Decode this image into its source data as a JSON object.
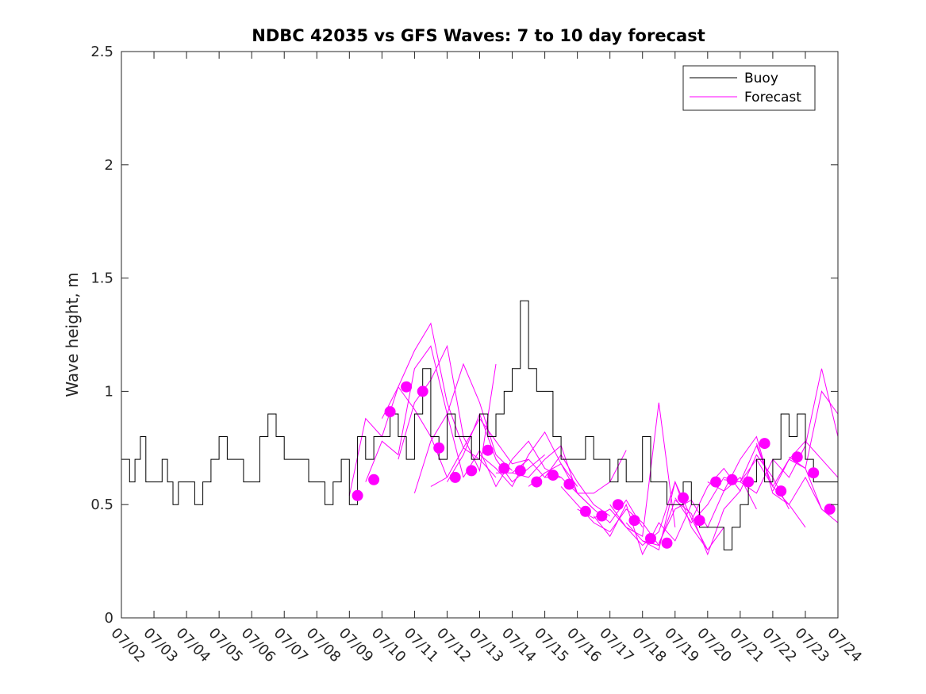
{
  "colors": {
    "buoy": "#000000",
    "forecast": "#ff00ff",
    "axis": "#262626",
    "background": "#ffffff"
  },
  "chart_data": {
    "type": "line",
    "title": "NDBC 42035 vs GFS Waves: 7 to 10 day forecast",
    "ylabel": "Wave height, m",
    "xlabel": "",
    "x_axis_kind": "date",
    "xlim": [
      "07/02",
      "07/24"
    ],
    "ylim": [
      0,
      2.5
    ],
    "x_ticks": [
      "07/02",
      "07/03",
      "07/04",
      "07/05",
      "07/06",
      "07/07",
      "07/08",
      "07/09",
      "07/10",
      "07/11",
      "07/12",
      "07/13",
      "07/14",
      "07/15",
      "07/16",
      "07/17",
      "07/18",
      "07/19",
      "07/20",
      "07/21",
      "07/22",
      "07/23",
      "07/24"
    ],
    "y_ticks": [
      0,
      0.5,
      1,
      1.5,
      2,
      2.5
    ],
    "y_tick_labels": [
      "0",
      "0.5",
      "1",
      "1.5",
      "2",
      "2.5"
    ],
    "grid": false,
    "legend": {
      "placement": "top-right",
      "entries": [
        "Buoy",
        "Forecast"
      ]
    },
    "buoy": {
      "x": [
        "07/02 00:00",
        "07/02 06:00",
        "07/02 10:00",
        "07/02 14:00",
        "07/02 18:00",
        "07/03 00:00",
        "07/03 06:00",
        "07/03 10:00",
        "07/03 14:00",
        "07/03 18:00",
        "07/04 00:00",
        "07/04 06:00",
        "07/04 12:00",
        "07/04 18:00",
        "07/05 00:00",
        "07/05 06:00",
        "07/05 12:00",
        "07/05 18:00",
        "07/06 00:00",
        "07/06 06:00",
        "07/06 12:00",
        "07/06 18:00",
        "07/07 00:00",
        "07/07 06:00",
        "07/07 12:00",
        "07/07 18:00",
        "07/08 00:00",
        "07/08 06:00",
        "07/08 12:00",
        "07/08 18:00",
        "07/09 00:00",
        "07/09 06:00",
        "07/09 12:00",
        "07/09 18:00",
        "07/10 00:00",
        "07/10 06:00",
        "07/10 12:00",
        "07/10 18:00",
        "07/11 00:00",
        "07/11 06:00",
        "07/11 12:00",
        "07/11 18:00",
        "07/12 00:00",
        "07/12 06:00",
        "07/12 12:00",
        "07/12 18:00",
        "07/13 00:00",
        "07/13 06:00",
        "07/13 12:00",
        "07/13 18:00",
        "07/14 00:00",
        "07/14 06:00",
        "07/14 12:00",
        "07/14 18:00",
        "07/15 00:00",
        "07/15 06:00",
        "07/15 12:00",
        "07/15 18:00",
        "07/16 00:00",
        "07/16 06:00",
        "07/16 12:00",
        "07/16 18:00",
        "07/17 00:00",
        "07/17 06:00",
        "07/17 12:00",
        "07/17 18:00",
        "07/18 00:00",
        "07/18 06:00",
        "07/18 12:00",
        "07/18 18:00",
        "07/19 00:00",
        "07/19 06:00",
        "07/19 12:00",
        "07/19 18:00",
        "07/20 00:00",
        "07/20 06:00",
        "07/20 12:00",
        "07/20 18:00",
        "07/21 00:00",
        "07/21 06:00",
        "07/21 12:00",
        "07/21 18:00",
        "07/22 00:00",
        "07/22 06:00",
        "07/22 12:00",
        "07/22 18:00",
        "07/23 00:00",
        "07/23 06:00",
        "07/23 12:00",
        "07/23 18:00",
        "07/24 00:00"
      ],
      "values": [
        0.7,
        0.6,
        0.7,
        0.8,
        0.6,
        0.6,
        0.7,
        0.6,
        0.5,
        0.6,
        0.6,
        0.5,
        0.6,
        0.7,
        0.8,
        0.7,
        0.7,
        0.6,
        0.6,
        0.8,
        0.9,
        0.8,
        0.7,
        0.7,
        0.7,
        0.6,
        0.6,
        0.5,
        0.6,
        0.7,
        0.5,
        0.8,
        0.7,
        0.8,
        0.8,
        0.9,
        0.8,
        0.7,
        0.9,
        1.1,
        0.8,
        0.7,
        0.9,
        0.8,
        0.8,
        0.7,
        0.9,
        0.8,
        0.9,
        1.0,
        1.1,
        1.4,
        1.1,
        1.0,
        1.0,
        0.8,
        0.7,
        0.7,
        0.7,
        0.8,
        0.7,
        0.7,
        0.6,
        0.7,
        0.6,
        0.6,
        0.8,
        0.6,
        0.6,
        0.5,
        0.5,
        0.6,
        0.5,
        0.4,
        0.4,
        0.4,
        0.3,
        0.4,
        0.5,
        0.6,
        0.7,
        0.6,
        0.7,
        0.9,
        0.8,
        0.9,
        0.7,
        0.6,
        0.6,
        0.6,
        0.5
      ]
    },
    "forecast_runs": [
      {
        "x": [
          "07/09 00:00",
          "07/09 12:00",
          "07/10 00:00",
          "07/10 12:00",
          "07/11 00:00",
          "07/11 12:00",
          "07/12 00:00"
        ],
        "values": [
          0.54,
          0.88,
          0.8,
          1.02,
          0.92,
          0.8,
          0.62
        ]
      },
      {
        "x": [
          "07/09 12:00",
          "07/10 00:00",
          "07/10 12:00",
          "07/11 00:00",
          "07/11 12:00",
          "07/12 00:00",
          "07/12 12:00"
        ],
        "values": [
          0.6,
          0.78,
          0.72,
          1.1,
          1.2,
          0.9,
          0.62
        ]
      },
      {
        "x": [
          "07/10 00:00",
          "07/10 12:00",
          "07/11 00:00",
          "07/11 12:00",
          "07/12 00:00",
          "07/12 12:00",
          "07/13 00:00",
          "07/13 12:00"
        ],
        "values": [
          0.88,
          1.02,
          1.18,
          1.3,
          0.95,
          0.75,
          0.7,
          0.62
        ]
      },
      {
        "x": [
          "07/10 12:00",
          "07/11 00:00",
          "07/11 12:00",
          "07/12 00:00",
          "07/12 12:00",
          "07/13 00:00",
          "07/13 12:00"
        ],
        "values": [
          0.7,
          0.95,
          1.05,
          1.2,
          0.8,
          0.65,
          1.12
        ]
      },
      {
        "x": [
          "07/11 00:00",
          "07/11 12:00",
          "07/12 00:00",
          "07/12 12:00",
          "07/13 00:00",
          "07/13 12:00",
          "07/14 00:00"
        ],
        "values": [
          0.55,
          0.78,
          0.9,
          1.12,
          0.95,
          0.72,
          0.65
        ]
      },
      {
        "x": [
          "07/11 12:00",
          "07/12 00:00",
          "07/12 12:00",
          "07/13 00:00",
          "07/13 12:00",
          "07/14 00:00",
          "07/14 12:00"
        ],
        "values": [
          0.58,
          0.62,
          0.75,
          0.88,
          0.78,
          0.68,
          0.7
        ]
      },
      {
        "x": [
          "07/12 00:00",
          "07/12 12:00",
          "07/13 00:00",
          "07/13 12:00",
          "07/14 00:00",
          "07/14 12:00",
          "07/15 00:00"
        ],
        "values": [
          0.6,
          0.72,
          0.9,
          0.7,
          0.6,
          0.66,
          0.72
        ]
      },
      {
        "x": [
          "07/12 12:00",
          "07/13 00:00",
          "07/13 12:00",
          "07/14 00:00",
          "07/14 12:00",
          "07/15 00:00",
          "07/15 12:00"
        ],
        "values": [
          0.62,
          0.74,
          0.58,
          0.7,
          0.78,
          0.66,
          0.62
        ]
      },
      {
        "x": [
          "07/13 00:00",
          "07/13 12:00",
          "07/14 00:00",
          "07/14 12:00",
          "07/15 00:00",
          "07/15 12:00",
          "07/16 00:00"
        ],
        "values": [
          0.72,
          0.66,
          0.58,
          0.72,
          0.82,
          0.68,
          0.58
        ]
      },
      {
        "x": [
          "07/13 12:00",
          "07/14 00:00",
          "07/14 12:00",
          "07/15 00:00",
          "07/15 12:00",
          "07/16 00:00",
          "07/16 12:00"
        ],
        "values": [
          0.64,
          0.64,
          0.62,
          0.7,
          0.76,
          0.55,
          0.48
        ]
      },
      {
        "x": [
          "07/14 00:00",
          "07/14 12:00",
          "07/15 00:00",
          "07/15 12:00",
          "07/16 00:00",
          "07/16 12:00",
          "07/17 00:00"
        ],
        "values": [
          0.64,
          0.7,
          0.62,
          0.72,
          0.6,
          0.5,
          0.45
        ]
      },
      {
        "x": [
          "07/14 12:00",
          "07/15 00:00",
          "07/15 12:00",
          "07/16 00:00",
          "07/16 12:00",
          "07/17 00:00",
          "07/17 12:00"
        ],
        "values": [
          0.58,
          0.64,
          0.68,
          0.55,
          0.55,
          0.6,
          0.74
        ]
      },
      {
        "x": [
          "07/15 00:00",
          "07/15 12:00",
          "07/16 00:00",
          "07/16 12:00",
          "07/17 00:00",
          "07/17 12:00",
          "07/18 00:00"
        ],
        "values": [
          0.62,
          0.62,
          0.55,
          0.48,
          0.42,
          0.52,
          0.4
        ]
      },
      {
        "x": [
          "07/15 12:00",
          "07/16 00:00",
          "07/16 12:00",
          "07/17 00:00",
          "07/17 12:00",
          "07/18 00:00",
          "07/18 12:00"
        ],
        "values": [
          0.58,
          0.5,
          0.42,
          0.38,
          0.48,
          0.42,
          0.32
        ]
      },
      {
        "x": [
          "07/16 00:00",
          "07/16 12:00",
          "07/17 00:00",
          "07/17 12:00",
          "07/18 00:00",
          "07/18 12:00",
          "07/19 00:00"
        ],
        "values": [
          0.48,
          0.44,
          0.48,
          0.4,
          0.36,
          0.95,
          0.4
        ]
      },
      {
        "x": [
          "07/16 12:00",
          "07/17 00:00",
          "07/17 12:00",
          "07/18 00:00",
          "07/18 12:00",
          "07/19 00:00",
          "07/19 12:00"
        ],
        "values": [
          0.45,
          0.36,
          0.5,
          0.28,
          0.42,
          0.34,
          0.5
        ]
      },
      {
        "x": [
          "07/17 00:00",
          "07/17 12:00",
          "07/18 00:00",
          "07/18 12:00",
          "07/19 00:00",
          "07/19 12:00",
          "07/20 00:00"
        ],
        "values": [
          0.5,
          0.4,
          0.32,
          0.38,
          0.6,
          0.4,
          0.3
        ]
      },
      {
        "x": [
          "07/17 12:00",
          "07/18 00:00",
          "07/18 12:00",
          "07/19 00:00",
          "07/19 12:00",
          "07/20 00:00",
          "07/20 12:00"
        ],
        "values": [
          0.42,
          0.34,
          0.3,
          0.6,
          0.44,
          0.3,
          0.4
        ]
      },
      {
        "x": [
          "07/18 00:00",
          "07/18 12:00",
          "07/19 00:00",
          "07/19 12:00",
          "07/20 00:00",
          "07/20 12:00",
          "07/21 00:00"
        ],
        "values": [
          0.34,
          0.32,
          0.52,
          0.46,
          0.28,
          0.48,
          0.56
        ]
      },
      {
        "x": [
          "07/18 12:00",
          "07/19 00:00",
          "07/19 12:00",
          "07/20 00:00",
          "07/20 12:00",
          "07/21 00:00",
          "07/21 12:00"
        ],
        "values": [
          0.33,
          0.48,
          0.52,
          0.4,
          0.56,
          0.62,
          0.48
        ]
      },
      {
        "x": [
          "07/19 00:00",
          "07/19 12:00",
          "07/20 00:00",
          "07/20 12:00",
          "07/21 00:00",
          "07/21 12:00",
          "07/22 00:00"
        ],
        "values": [
          0.53,
          0.42,
          0.5,
          0.62,
          0.6,
          0.7,
          0.58
        ]
      },
      {
        "x": [
          "07/19 12:00",
          "07/20 00:00",
          "07/20 12:00",
          "07/21 00:00",
          "07/21 12:00",
          "07/22 00:00",
          "07/22 12:00"
        ],
        "values": [
          0.43,
          0.58,
          0.66,
          0.56,
          0.72,
          0.62,
          0.48
        ]
      },
      {
        "x": [
          "07/20 00:00",
          "07/20 12:00",
          "07/21 00:00",
          "07/21 12:00",
          "07/22 00:00",
          "07/22 12:00",
          "07/23 00:00"
        ],
        "values": [
          0.6,
          0.56,
          0.7,
          0.8,
          0.55,
          0.5,
          0.4
        ]
      },
      {
        "x": [
          "07/20 12:00",
          "07/21 00:00",
          "07/21 12:00",
          "07/22 00:00",
          "07/22 12:00",
          "07/23 00:00",
          "07/23 12:00"
        ],
        "values": [
          0.61,
          0.6,
          0.76,
          0.58,
          0.5,
          0.62,
          0.48
        ]
      },
      {
        "x": [
          "07/21 00:00",
          "07/21 12:00",
          "07/22 00:00",
          "07/22 12:00",
          "07/23 00:00",
          "07/23 12:00",
          "07/24 00:00"
        ],
        "values": [
          0.6,
          0.55,
          0.7,
          0.62,
          0.76,
          1.1,
          0.8
        ]
      },
      {
        "x": [
          "07/21 12:00",
          "07/22 00:00",
          "07/22 12:00",
          "07/23 00:00",
          "07/23 12:00",
          "07/24 00:00"
        ],
        "values": [
          0.77,
          0.58,
          0.7,
          0.66,
          1.0,
          0.9
        ]
      },
      {
        "x": [
          "07/22 00:00",
          "07/22 12:00",
          "07/23 00:00",
          "07/23 12:00",
          "07/24 00:00"
        ],
        "values": [
          0.56,
          0.7,
          0.78,
          0.7,
          0.62
        ]
      },
      {
        "x": [
          "07/22 12:00",
          "07/23 00:00",
          "07/23 12:00",
          "07/24 00:00"
        ],
        "values": [
          0.71,
          0.66,
          0.48,
          0.42
        ]
      }
    ],
    "forecast_markers": {
      "x": [
        "07/09 06:00",
        "07/09 18:00",
        "07/10 06:00",
        "07/10 18:00",
        "07/11 06:00",
        "07/11 18:00",
        "07/12 06:00",
        "07/12 18:00",
        "07/13 06:00",
        "07/13 18:00",
        "07/14 06:00",
        "07/14 18:00",
        "07/15 06:00",
        "07/15 18:00",
        "07/16 06:00",
        "07/16 18:00",
        "07/17 06:00",
        "07/17 18:00",
        "07/18 06:00",
        "07/18 18:00",
        "07/19 06:00",
        "07/19 18:00",
        "07/20 06:00",
        "07/20 18:00",
        "07/21 06:00",
        "07/21 18:00",
        "07/22 06:00",
        "07/22 18:00",
        "07/23 06:00",
        "07/23 18:00"
      ],
      "values": [
        0.54,
        0.61,
        0.91,
        1.02,
        1.0,
        0.75,
        0.62,
        0.65,
        0.74,
        0.66,
        0.65,
        0.6,
        0.63,
        0.59,
        0.47,
        0.45,
        0.5,
        0.43,
        0.35,
        0.33,
        0.53,
        0.43,
        0.6,
        0.61,
        0.6,
        0.77,
        0.56,
        0.71,
        0.64,
        0.48
      ]
    }
  }
}
